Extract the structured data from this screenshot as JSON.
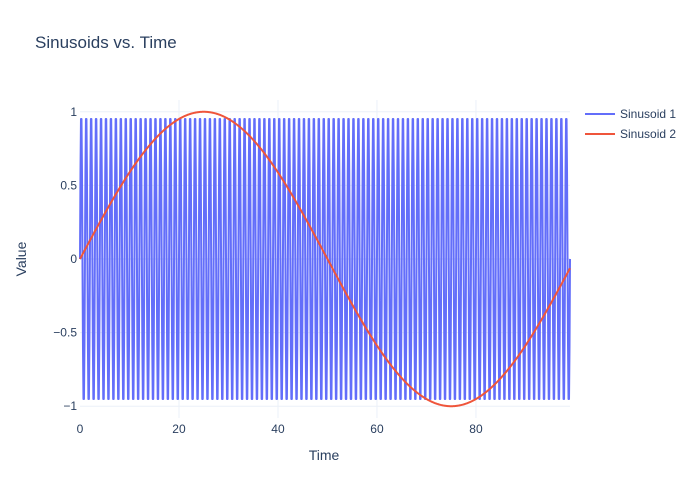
{
  "chart_data": {
    "type": "line",
    "title": "Sinusoids vs. Time",
    "xlabel": "Time",
    "ylabel": "Value",
    "xlim": [
      0,
      99
    ],
    "ylim": [
      -1.08,
      1.08
    ],
    "x_ticks": [
      0,
      20,
      40,
      60,
      80
    ],
    "x_tick_labels": [
      "0",
      "20",
      "40",
      "60",
      "80"
    ],
    "y_ticks": [
      -1,
      -0.5,
      0,
      0.5,
      1
    ],
    "y_tick_labels": [
      "−1",
      "−0.5",
      "0",
      "0.5",
      "1"
    ],
    "grid": true,
    "legend_position": "top-right",
    "x_start": 0,
    "x_end": 99,
    "x_step": 0.1,
    "series": [
      {
        "name": "Sinusoid 1",
        "color": "#636efa",
        "formula": "sin(2*pi*t)"
      },
      {
        "name": "Sinusoid 2",
        "color": "#ef553b",
        "formula": "sin(2*pi*t/100)"
      }
    ]
  }
}
